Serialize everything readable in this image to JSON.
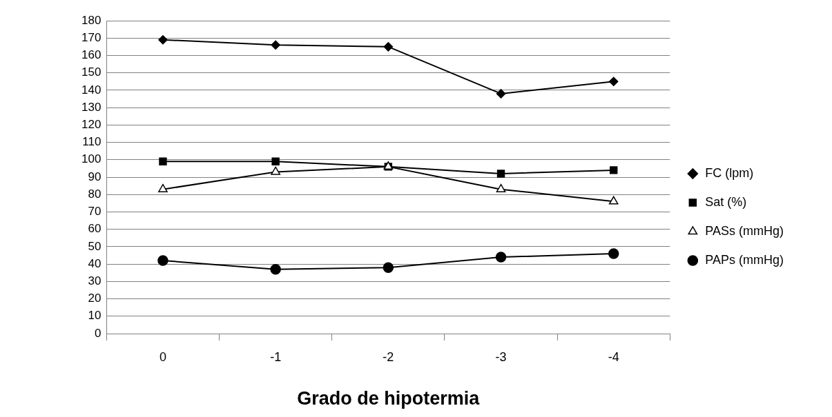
{
  "chart_data": {
    "type": "line",
    "xlabel": "Grado de hipotermia",
    "categories": [
      "0",
      "-1",
      "-2",
      "-3",
      "-4"
    ],
    "series": [
      {
        "name": "FC (lpm)",
        "color": "#000000",
        "marker": "diamond",
        "values": [
          169,
          166,
          165,
          138,
          145
        ]
      },
      {
        "name": "Sat (%)",
        "color": "#000000",
        "marker": "square",
        "values": [
          99,
          99,
          96,
          92,
          94
        ]
      },
      {
        "name": "PASs (mmHg)",
        "color": "#000000",
        "marker": "triangle",
        "values": [
          83,
          93,
          96,
          83,
          76
        ]
      },
      {
        "name": "PAPs (mmHg)",
        "color": "#000000",
        "marker": "circle",
        "values": [
          42,
          37,
          38,
          44,
          46
        ]
      }
    ],
    "ylim": [
      0,
      180
    ],
    "yticks": [
      0,
      10,
      20,
      30,
      40,
      50,
      60,
      70,
      80,
      90,
      100,
      110,
      120,
      130,
      140,
      150,
      160,
      170,
      180
    ],
    "grid": "y",
    "legend": "right",
    "line_style": "solid"
  }
}
